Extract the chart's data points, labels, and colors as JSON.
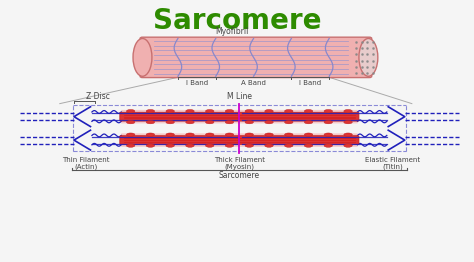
{
  "title": "Sarcomere",
  "title_color": "#2e8b00",
  "title_fontsize": 20,
  "bg_color": "#f5f5f5",
  "labels": {
    "myofibril": "Myofibril",
    "i_band_left": "I Band",
    "a_band": "A Band",
    "i_band_right": "I Band",
    "z_disc": "Z Disc",
    "m_line": "M Line",
    "thin_filament": "Thin Filament\n(Actin)",
    "thick_filament": "Thick Filament\n(Myosin)",
    "elastic_filament": "Elastic Filament\n(Titin)",
    "sarcomere": "Sarcomere"
  },
  "colors": {
    "tube_fill": "#f0b0b0",
    "tube_stroke": "#c87070",
    "tube_lines_v": "#8888cc",
    "tube_lines_h": "#9090d0",
    "actin_blue": "#2020bb",
    "myosin_red": "#dd3333",
    "myosin_fill": "#f08080",
    "spring_blue": "#2020bb",
    "m_line": "#cc00cc",
    "bracket": "#555555",
    "label_text": "#444444",
    "bg": "#f5f5f5",
    "diagonal": "#aaaaaa"
  }
}
